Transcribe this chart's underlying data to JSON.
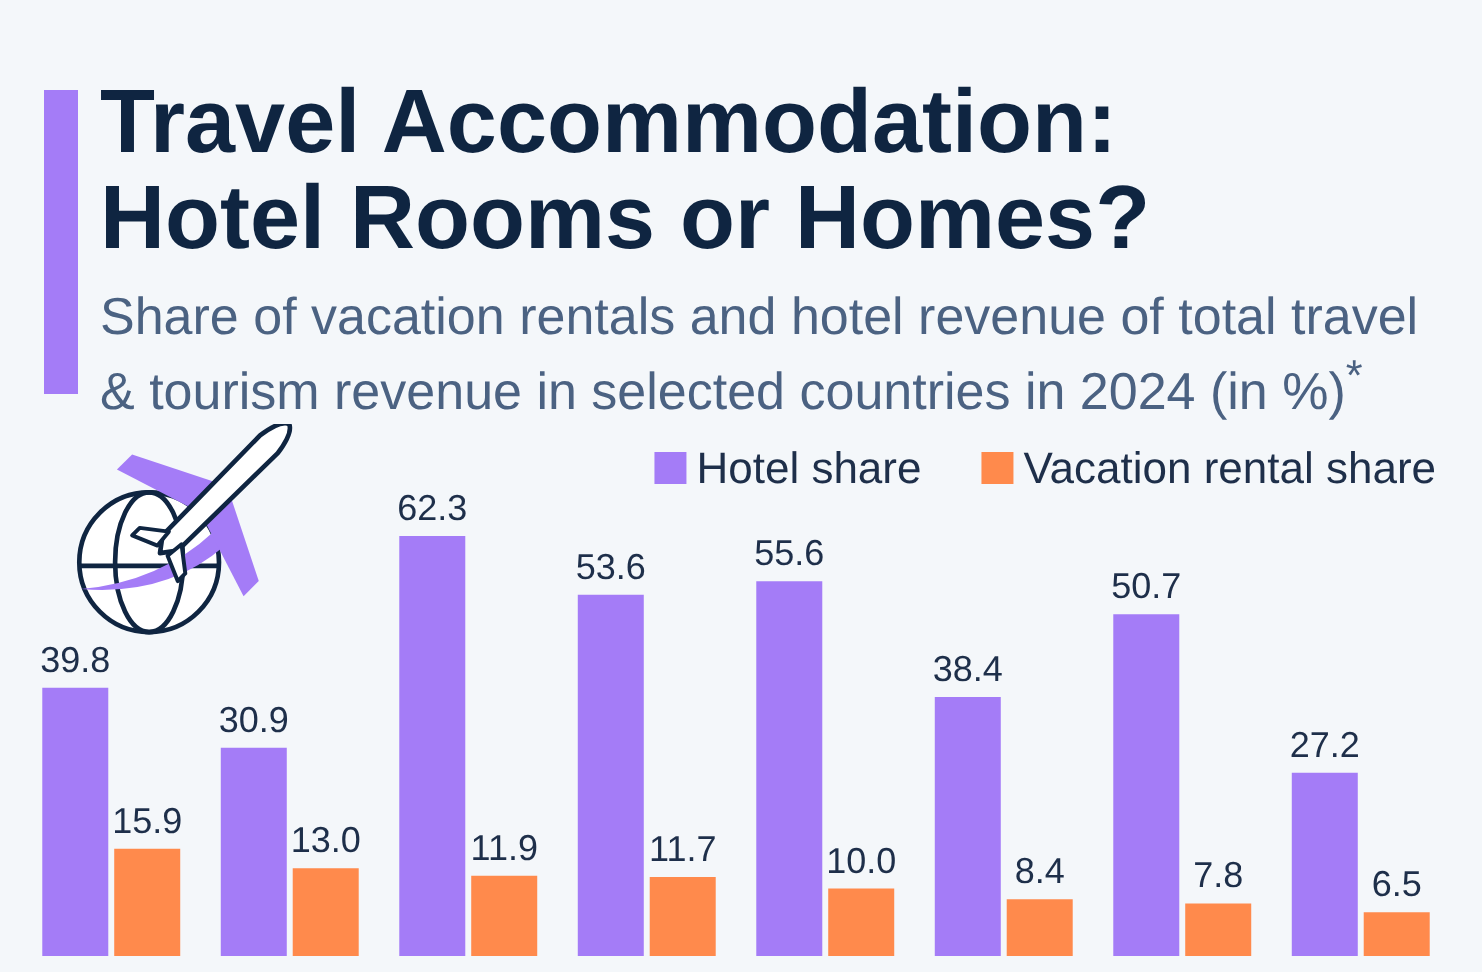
{
  "chart_data": {
    "type": "bar",
    "title": "Travel Accommodation: Hotel Rooms or Homes?",
    "subtitle": "Share of vacation rentals and hotel revenue of total travel & tourism revenue in selected countries in 2024 (in %)$^{*}$",
    "categories": [
      null,
      null,
      null,
      null,
      null,
      null,
      null,
      null
    ],
    "series": [
      {
        "name": "Hotel share",
        "color": "#a47cf7",
        "values": [
          39.8,
          30.9,
          62.3,
          53.6,
          55.6,
          38.4,
          50.7,
          27.2
        ],
        "value_labels": [
          "39.8",
          "30.9",
          "62.3",
          "53.6",
          "55.6",
          "38.4",
          "50.7",
          "27.2"
        ]
      },
      {
        "name": "Vacation rental share",
        "color": "#ff8a4c",
        "values": [
          15.9,
          13.0,
          11.9,
          11.7,
          10.0,
          8.4,
          7.8,
          6.5
        ],
        "value_labels": [
          "15.9",
          "13.0",
          "11.9",
          "11.7",
          "10.0",
          "8.4",
          "7.8",
          "6.5"
        ]
      }
    ],
    "legend": "top right"
  }
}
